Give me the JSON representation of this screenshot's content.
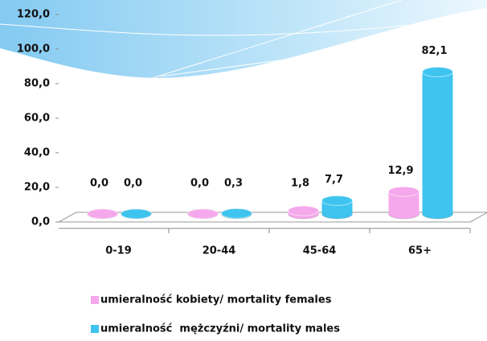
{
  "chart_data": {
    "type": "bar3d",
    "categories": [
      "0-19",
      "20-44",
      "45-64",
      "65+"
    ],
    "series": [
      {
        "name": "umieralność kobiety/ mortality females",
        "color": "#f5a8ec",
        "values": [
          0.0,
          0.0,
          1.8,
          12.9
        ],
        "value_labels": [
          "0,0",
          "0,0",
          "1,8",
          "12,9"
        ]
      },
      {
        "name": "umieralność  mężczyźni/ mortality males",
        "color": "#3fc4ef",
        "values": [
          0.0,
          0.3,
          7.7,
          82.1
        ],
        "value_labels": [
          "0,0",
          "0,3",
          "7,7",
          "82,1"
        ]
      }
    ],
    "ylim": [
      0,
      120
    ],
    "yticks": [
      {
        "value": 0,
        "label": "0,0"
      },
      {
        "value": 20,
        "label": "20,0"
      },
      {
        "value": 40,
        "label": "40,0"
      },
      {
        "value": 60,
        "label": "60,0"
      },
      {
        "value": 80,
        "label": "80,0"
      },
      {
        "value": 100,
        "label": "100,0"
      },
      {
        "value": 120,
        "label": "120,0"
      }
    ],
    "legend": "bottom"
  }
}
